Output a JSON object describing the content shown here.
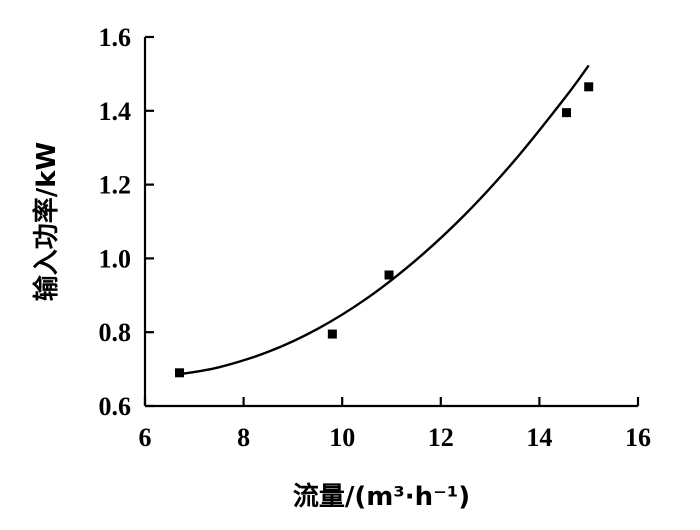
{
  "chart_data": {
    "type": "scatter",
    "title": "",
    "xlabel": "流量/(m³·h⁻¹)",
    "ylabel": "输入功率/kW",
    "xlim": [
      6,
      16
    ],
    "ylim": [
      0.6,
      1.6
    ],
    "x_ticks": [
      6,
      8,
      10,
      12,
      14,
      16
    ],
    "y_ticks": [
      0.6,
      0.8,
      1.0,
      1.2,
      1.4,
      1.6
    ],
    "x_tick_labels": [
      "6",
      "8",
      "10",
      "12",
      "14",
      "16"
    ],
    "y_tick_labels": [
      "0.6",
      "0.8",
      "1.0",
      "1.2",
      "1.4",
      "1.6"
    ],
    "grid": false,
    "legend": "none",
    "series": [
      {
        "type": "scatter",
        "marker": "square",
        "x": [
          6.7,
          9.8,
          10.95,
          14.55,
          15.0
        ],
        "y": [
          0.69,
          0.795,
          0.955,
          1.395,
          1.465
        ]
      },
      {
        "type": "line",
        "x": [
          6.7,
          7.5,
          8.5,
          9.5,
          10.5,
          11.5,
          12.5,
          13.5,
          14.5,
          15.0
        ],
        "y": [
          0.686,
          0.705,
          0.747,
          0.809,
          0.892,
          0.996,
          1.12,
          1.266,
          1.432,
          1.523
        ]
      }
    ]
  }
}
